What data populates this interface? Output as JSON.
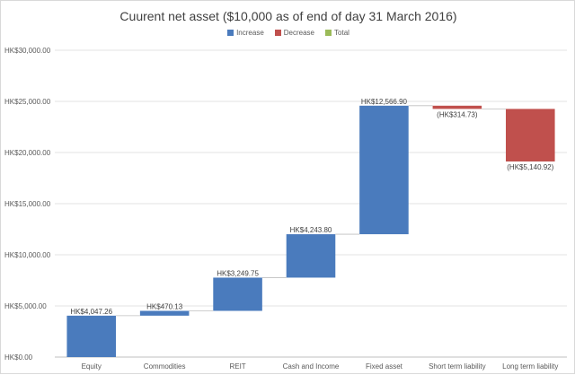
{
  "chart_data": {
    "type": "waterfall",
    "title": "Cuurent net asset  ($10,000 as of end of day 31 March 2016)",
    "legend": {
      "position": "top",
      "items": [
        {
          "name": "Increase",
          "color": "#4a7bbd"
        },
        {
          "name": "Decrease",
          "color": "#c0504d"
        },
        {
          "name": "Total",
          "color": "#9bbb59"
        }
      ]
    },
    "y_ticks": [
      "HK$0.00",
      "HK$5,000.00",
      "HK$10,000.00",
      "HK$15,000.00",
      "HK$20,000.00",
      "HK$25,000.00",
      "HK$30,000.00"
    ],
    "ylim": [
      0,
      30000
    ],
    "grid": true,
    "categories": [
      "Equity",
      "Commodities",
      "REIT",
      "Cash and Income",
      "Fixed asset",
      "Short term liability",
      "Long term liability"
    ],
    "values": [
      4047.26,
      470.13,
      3249.75,
      4243.8,
      12566.9,
      -314.73,
      -5140.92
    ],
    "labels": [
      "HK$4,047.26",
      "HK$470.13",
      "HK$3,249.75",
      "HK$4,243.80",
      "HK$12,566.90",
      "(HK$314.73)",
      "(HK$5,140.92)"
    ]
  }
}
